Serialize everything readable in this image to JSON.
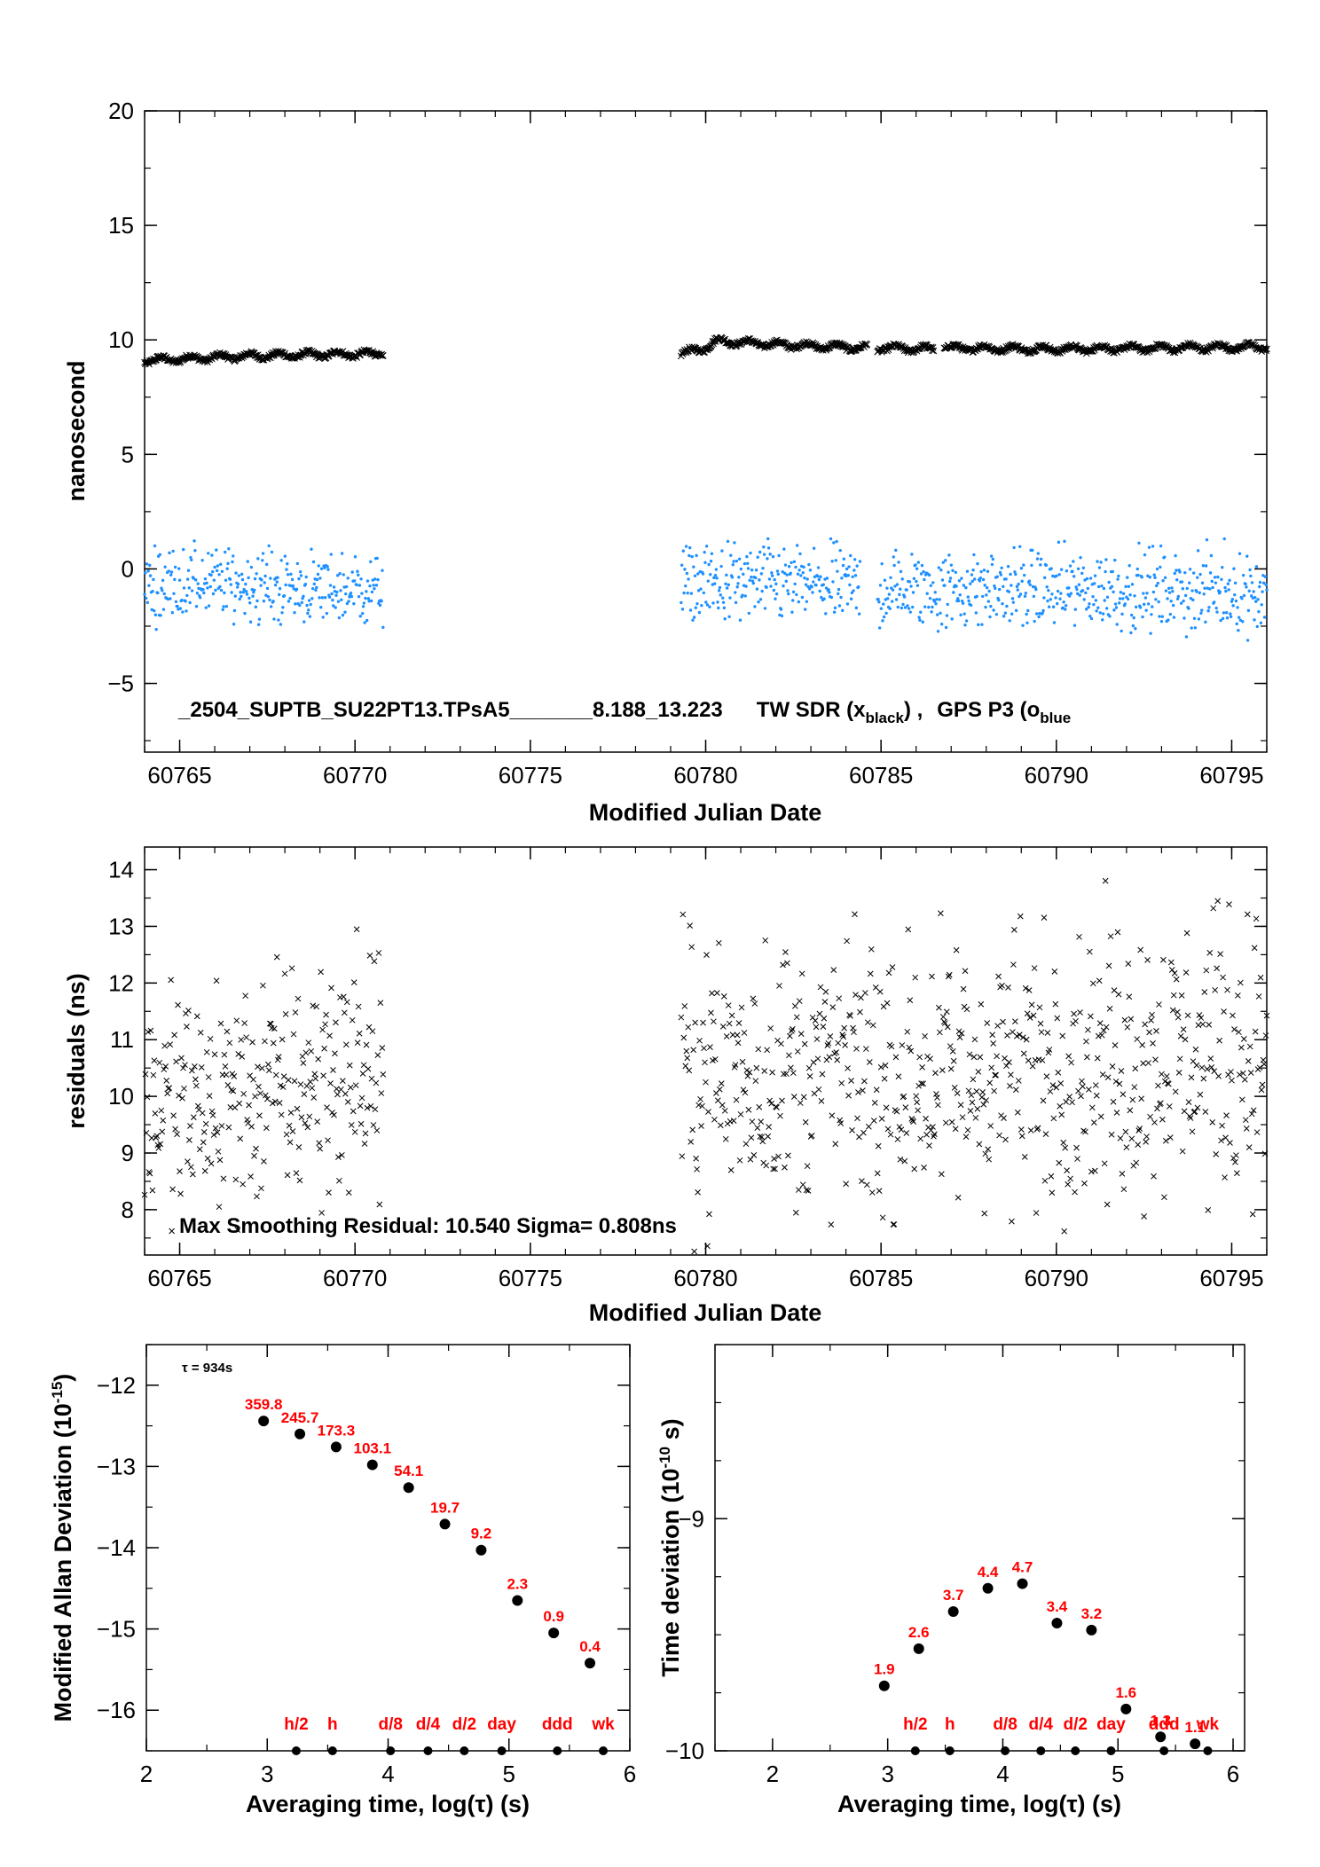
{
  "colors": {
    "black": "#000000",
    "blue": "#1e90ff",
    "red": "#ff0000"
  },
  "chart_data": [
    {
      "id": "top",
      "type": "scatter",
      "xlabel": "Modified Julian Date",
      "ylabel": "nanosecond",
      "xlim": [
        60764,
        60796
      ],
      "ylim": [
        -8,
        20
      ],
      "xticks": [
        60765,
        60770,
        60775,
        60780,
        60785,
        60790,
        60795
      ],
      "yticks": [
        20,
        15,
        10,
        5,
        0,
        -5
      ],
      "ytick_labels": [
        "20",
        "15",
        "10",
        "5",
        "0",
        "−5"
      ],
      "annotation_parts": [
        "_2504_SUPTB_SU22PT13.TPsA5_______8.188_13.223",
        "TW SDR (x",
        "black",
        ") ,",
        "GPS P3 (o",
        "blue"
      ],
      "series": [
        {
          "marker": "x",
          "color": "#000000",
          "segments": [
            {
              "x": [
                60764.0,
                60765.5,
                60767.0,
                60768.5,
                60770.8
              ],
              "y": [
                9.1,
                9.2,
                9.3,
                9.35,
                9.4
              ]
            },
            {
              "x": [
                60779.3,
                60779.9,
                60780.3,
                60782.0,
                60784.6
              ],
              "y": [
                9.4,
                9.6,
                9.95,
                9.8,
                9.65
              ]
            },
            {
              "x": [
                60784.9,
                60786.5
              ],
              "y": [
                9.65,
                9.6
              ]
            },
            {
              "x": [
                60786.8,
                60790.0,
                60793.0,
                60796.0
              ],
              "y": [
                9.65,
                9.6,
                9.65,
                9.7
              ]
            }
          ]
        },
        {
          "marker": "o",
          "color": "#1e90ff",
          "segments": [
            {
              "x": [
                60764.0,
                60765.5,
                60767.0,
                60768.5,
                60770.8
              ],
              "y": [
                -0.8,
                -0.6,
                -0.7,
                -0.9,
                -0.9
              ],
              "spread": 1.8
            },
            {
              "x": [
                60779.3,
                60781.5,
                60784.4
              ],
              "y": [
                -0.7,
                -0.6,
                -0.8
              ],
              "spread": 2.0
            },
            {
              "x": [
                60784.9,
                60790.0,
                60796.0
              ],
              "y": [
                -0.9,
                -0.9,
                -1.0
              ],
              "spread": 2.0
            }
          ]
        }
      ]
    },
    {
      "id": "mid",
      "type": "scatter",
      "xlabel": "Modified Julian Date",
      "ylabel": "residuals (ns)",
      "xlim": [
        60764,
        60796
      ],
      "ylim": [
        7.2,
        14.4
      ],
      "xticks": [
        60765,
        60770,
        60775,
        60780,
        60785,
        60790,
        60795
      ],
      "yticks": [
        14,
        13,
        12,
        11,
        10,
        9,
        8
      ],
      "ytick_labels": [
        "14",
        "13",
        "12",
        "11",
        "10",
        "9",
        "8"
      ],
      "annotation": "Max Smoothing Residual: 10.540  Sigma= 0.808ns",
      "series": [
        {
          "marker": "x",
          "color": "#000000",
          "segments": [
            {
              "x": [
                60764.0,
                60766.0,
                60768.0,
                60770.8
              ],
              "y": [
                9.8,
                9.9,
                10.2,
                10.6
              ],
              "spread": 2.3
            },
            {
              "x": [
                60779.3,
                60783.0,
                60786.0,
                60790.0,
                60796.0
              ],
              "y": [
                10.4,
                10.4,
                10.3,
                10.6,
                10.8
              ],
              "spread": 2.6
            }
          ]
        }
      ]
    },
    {
      "id": "adev",
      "type": "scatter",
      "xlabel": "Averaging time, log(τ) (s)",
      "ylabel_main": "Modified Allan Deviation (10",
      "ylabel_sup": "-15",
      "ylabel_tail": ")",
      "xlim": [
        2,
        6
      ],
      "ylim": [
        -16.5,
        -11.5
      ],
      "xticks": [
        2,
        3,
        4,
        5,
        6
      ],
      "yticks": [
        -12,
        -13,
        -14,
        -15,
        -16
      ],
      "ytick_labels": [
        "−12",
        "−13",
        "−14",
        "−15",
        "−16"
      ],
      "tau_note": "τ = 934s",
      "x": [
        2.97,
        3.27,
        3.57,
        3.87,
        4.17,
        4.47,
        4.77,
        5.07,
        5.37,
        5.67
      ],
      "y": [
        -12.44,
        -12.6,
        -12.76,
        -12.98,
        -13.26,
        -13.71,
        -14.03,
        -14.65,
        -15.05,
        -15.42
      ],
      "labels": [
        "359.8",
        "245.7",
        "173.3",
        "103.1",
        "54.1",
        "19.7",
        "9.2",
        "2.3",
        "0.9",
        "0.4"
      ],
      "markers": {
        "x": [
          3.24,
          3.54,
          4.02,
          4.33,
          4.63,
          4.94,
          5.4,
          5.78
        ],
        "labels": [
          "h/2",
          "h",
          "d/8",
          "d/4",
          "d/2",
          "day",
          "ddd",
          "wk"
        ]
      }
    },
    {
      "id": "tdev",
      "type": "scatter",
      "xlabel": "Averaging time, log(τ) (s)",
      "ylabel_main": "Time deviation (10",
      "ylabel_sup": "-10",
      "ylabel_tail": " s)",
      "xlim": [
        1.5,
        6.1
      ],
      "ylim": [
        -10,
        -8.25
      ],
      "xticks": [
        2,
        3,
        4,
        5,
        6
      ],
      "yticks": [
        -9,
        -10
      ],
      "ytick_labels": [
        "−9",
        "−10"
      ],
      "x": [
        2.97,
        3.27,
        3.57,
        3.87,
        4.17,
        4.47,
        4.77,
        5.07,
        5.37,
        5.67
      ],
      "y": [
        -9.72,
        -9.56,
        -9.4,
        -9.3,
        -9.28,
        -9.45,
        -9.48,
        -9.82,
        -9.94,
        -9.97
      ],
      "labels": [
        "1.9",
        "2.6",
        "3.7",
        "4.4",
        "4.7",
        "3.4",
        "3.2",
        "1.6",
        "1.3",
        "1.1"
      ],
      "markers": {
        "x": [
          3.24,
          3.54,
          4.02,
          4.33,
          4.63,
          4.94,
          5.4,
          5.78
        ],
        "labels": [
          "h/2",
          "h",
          "d/8",
          "d/4",
          "d/2",
          "day",
          "ddd",
          "wk"
        ]
      }
    }
  ]
}
